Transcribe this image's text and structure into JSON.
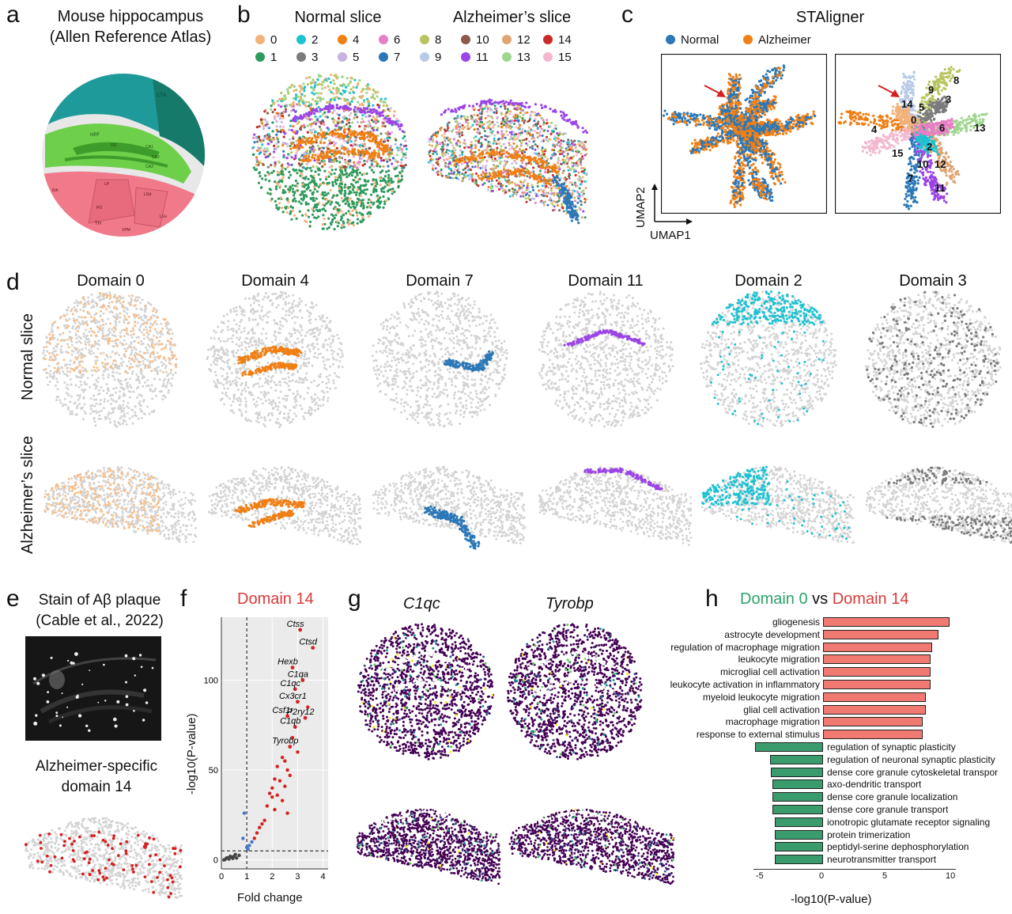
{
  "panels": {
    "a": {
      "letter": "a",
      "title_line1": "Mouse hippocampus",
      "title_line2": "(Allen Reference Atlas)",
      "atlas_labels": [
        "CTX",
        "HPF",
        "DG",
        "CA1",
        "CA2",
        "CA3",
        "TH",
        "LP",
        "PO",
        "LGd",
        "VPM",
        "LGv",
        "Eth"
      ]
    },
    "b": {
      "letter": "b",
      "normal_title": "Normal slice",
      "alz_title": "Alzheimer’s slice"
    },
    "c": {
      "letter": "c",
      "title": "STAligner",
      "legend_normal": "Normal",
      "legend_alz": "Alzheimer",
      "axis_y": "UMAP2",
      "axis_x": "UMAP1",
      "cluster_labels": [
        "8",
        "9",
        "3",
        "14",
        "5",
        "0",
        "6",
        "13",
        "4",
        "2",
        "15",
        "10",
        "12",
        "7",
        "11"
      ]
    },
    "d": {
      "letter": "d",
      "row_normal": "Normal slice",
      "row_alz": "Alzheimer’s slice",
      "domains": [
        "Domain 0",
        "Domain 4",
        "Domain 7",
        "Domain 11",
        "Domain 2",
        "Domain 3"
      ]
    },
    "e": {
      "letter": "e",
      "stain_line1": "Stain of Aβ plaque",
      "stain_line2": "(Cable et al., 2022)",
      "domain_line1": "Alzheimer-specific",
      "domain_line2": "domain 14"
    },
    "f": {
      "letter": "f",
      "title": "Domain 14",
      "ylabel": "-log10(P-value)",
      "xlabel": "Fold change",
      "genes": [
        "Ctss",
        "Ctsd",
        "Hexb",
        "C1qa",
        "C1qc",
        "Cx3cr1",
        "Csf1r",
        "P2ry12",
        "C1qb",
        "Tyrobp"
      ]
    },
    "g": {
      "letter": "g",
      "gene1": "C1qc",
      "gene2": "Tyrobp"
    },
    "h": {
      "letter": "h",
      "title_a": "Domain 0",
      "title_vs": " vs ",
      "title_b": "Domain 14",
      "xlabel": "-log10(P-value)"
    }
  },
  "legend_b": [
    {
      "label": "0",
      "color": "#f3b27a"
    },
    {
      "label": "1",
      "color": "#2e9a5d"
    },
    {
      "label": "2",
      "color": "#1ec2d2"
    },
    {
      "label": "3",
      "color": "#7b7b7b"
    },
    {
      "label": "4",
      "color": "#f07f14"
    },
    {
      "label": "5",
      "color": "#c8b3e0"
    },
    {
      "label": "6",
      "color": "#e77fc4"
    },
    {
      "label": "7",
      "color": "#2b78b8"
    },
    {
      "label": "8",
      "color": "#b8c45e"
    },
    {
      "label": "9",
      "color": "#b7cbe8"
    },
    {
      "label": "10",
      "color": "#8c5a4b"
    },
    {
      "label": "11",
      "color": "#9b45e6"
    },
    {
      "label": "12",
      "color": "#e0a472"
    },
    {
      "label": "13",
      "color": "#9ed68e"
    },
    {
      "label": "14",
      "color": "#cc2828"
    },
    {
      "label": "15",
      "color": "#f3b8d0"
    }
  ],
  "colors": {
    "normal": "#2b78b8",
    "alz": "#f07f14",
    "red_title": "#d93a3a",
    "green_title": "#2ca36a",
    "bar_up": "#f07a72",
    "bar_down": "#3a9b6c",
    "gray": "#d3d3d3"
  },
  "chart_data": [
    {
      "type": "scatter",
      "title": "Domain 14",
      "xlabel": "Fold change",
      "ylabel": "-log10(P-value)",
      "xlim": [
        0,
        4.2
      ],
      "ylim": [
        -5,
        135
      ],
      "xticks": [
        0,
        1,
        2,
        3,
        4
      ],
      "yticks": [
        0,
        50,
        100
      ],
      "threshold_x": 1,
      "threshold_y": 5,
      "labeled_points": [
        {
          "gene": "Ctss",
          "x": 3.1,
          "y": 128
        },
        {
          "gene": "Ctsd",
          "x": 3.6,
          "y": 118
        },
        {
          "gene": "Hexb",
          "x": 2.8,
          "y": 107
        },
        {
          "gene": "C1qa",
          "x": 3.2,
          "y": 100
        },
        {
          "gene": "C1qc",
          "x": 2.9,
          "y": 95
        },
        {
          "gene": "Cx3cr1",
          "x": 3.0,
          "y": 88
        },
        {
          "gene": "Csf1r",
          "x": 2.6,
          "y": 80
        },
        {
          "gene": "P2ry12",
          "x": 3.3,
          "y": 79
        },
        {
          "gene": "C1qb",
          "x": 2.9,
          "y": 74
        },
        {
          "gene": "Tyrobp",
          "x": 2.7,
          "y": 63
        }
      ],
      "other_points": [
        [
          2.4,
          57
        ],
        [
          2.5,
          55
        ],
        [
          2.2,
          52
        ],
        [
          2.6,
          50
        ],
        [
          2.1,
          45
        ],
        [
          2.3,
          44
        ],
        [
          2.0,
          40
        ],
        [
          2.5,
          41
        ],
        [
          1.9,
          37
        ],
        [
          2.2,
          36
        ],
        [
          2.4,
          33
        ],
        [
          1.8,
          30
        ],
        [
          2.1,
          28
        ],
        [
          2.6,
          26
        ],
        [
          1.7,
          22
        ],
        [
          1.5,
          18
        ],
        [
          1.4,
          15
        ],
        [
          1.3,
          12
        ],
        [
          2.0,
          35
        ],
        [
          2.7,
          47
        ],
        [
          3.0,
          60
        ],
        [
          2.8,
          68
        ],
        [
          3.4,
          85
        ],
        [
          1.6,
          20
        ]
      ],
      "blue_points": [
        [
          1.05,
          6
        ],
        [
          1.1,
          8
        ],
        [
          1.2,
          10
        ],
        [
          0.9,
          26
        ],
        [
          1.0,
          7
        ],
        [
          0.85,
          12
        ]
      ],
      "gray_points": [
        [
          0.1,
          0
        ],
        [
          0.2,
          1
        ],
        [
          0.3,
          0.5
        ],
        [
          0.4,
          1.5
        ],
        [
          0.5,
          2
        ],
        [
          0.6,
          1
        ],
        [
          0.7,
          2.5
        ],
        [
          0.15,
          0.3
        ],
        [
          0.25,
          1.2
        ],
        [
          0.35,
          2
        ],
        [
          0.45,
          0.8
        ],
        [
          0.55,
          3
        ]
      ]
    },
    {
      "type": "bar",
      "title": "Domain 0 vs Domain 14",
      "xlabel": "-log10(P-value)",
      "xlim": [
        -5.5,
        10.5
      ],
      "xticks": [
        -5,
        0,
        5,
        10
      ],
      "categories": [
        "gliogenesis",
        "astrocyte development",
        "regulation of macrophage migration",
        "leukocyte migration",
        "microglial cell activation",
        "leukocyte activation in inflammatory",
        "myeloid leukocyte migration",
        "glial cell activation",
        "macrophage migration",
        "response to external stimulus",
        "regulation of synaptic plasticity",
        "regulation of neuronal synaptic plasticity",
        "dense core granule cytoskeletal transpor",
        "axo-dendritic transport",
        "dense core granule localization",
        "dense core granule transport",
        "ionotropic glutamate receptor signaling",
        "protein trimerization",
        "peptidyl-serine dephosphorylation",
        "neurotransmitter transport"
      ],
      "values": [
        10.0,
        9.1,
        8.6,
        8.5,
        8.5,
        8.5,
        8.1,
        8.1,
        7.9,
        7.9,
        -5.4,
        -4.2,
        -4.1,
        -4.0,
        -4.0,
        -4.0,
        -3.8,
        -3.8,
        -3.8,
        -3.8
      ]
    }
  ]
}
